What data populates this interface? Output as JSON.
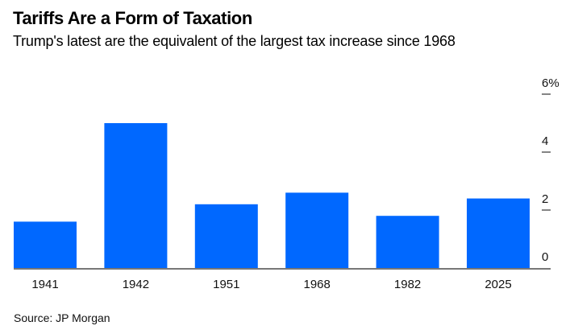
{
  "header": {
    "title": "Tariffs Are a Form of Taxation",
    "subtitle": "Trump's latest are the equivalent of the largest tax increase since 1968"
  },
  "footer": {
    "source": "Source: JP Morgan"
  },
  "chart_data": {
    "type": "bar",
    "title": "Tariffs Are a Form of Taxation",
    "subtitle": "Trump's latest are the equivalent of the largest tax increase since 1968",
    "xlabel": "",
    "ylabel": "",
    "categories": [
      "1941",
      "1942",
      "1951",
      "1968",
      "1982",
      "2025"
    ],
    "values": [
      1.6,
      5.0,
      2.2,
      2.6,
      1.8,
      2.4
    ],
    "unit": "% of GDP",
    "ylim": [
      0,
      6
    ],
    "yticks": [
      0,
      2,
      4,
      6
    ],
    "ytick_labels": [
      "0",
      "2",
      "4",
      "6%"
    ],
    "y_axis_side": "right",
    "grid": false,
    "bar_color": "#0068FF",
    "baseline_color": "#777777",
    "source": "Source: JP Morgan"
  }
}
